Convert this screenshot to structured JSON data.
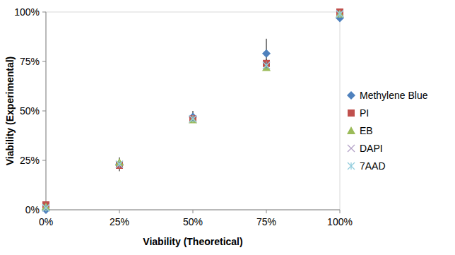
{
  "chart_data": {
    "type": "scatter",
    "x_label": "Viability (Theoretical)",
    "y_label": "Viability (Experimental)",
    "x": [
      0,
      25,
      50,
      75,
      100
    ],
    "xlim": [
      0,
      100
    ],
    "ylim": [
      0,
      100
    ],
    "xticks": [
      {
        "value": 0,
        "label": "0%"
      },
      {
        "value": 25,
        "label": "25%"
      },
      {
        "value": 50,
        "label": "50%"
      },
      {
        "value": 75,
        "label": "75%"
      },
      {
        "value": 100,
        "label": "100%"
      }
    ],
    "yticks": [
      {
        "value": 0,
        "label": "0%"
      },
      {
        "value": 25,
        "label": "25%"
      },
      {
        "value": 50,
        "label": "50%"
      },
      {
        "value": 75,
        "label": "75%"
      },
      {
        "value": 100,
        "label": "100%"
      }
    ],
    "grid": false,
    "legend": "right",
    "series": [
      {
        "name": "Methylene Blue",
        "color": "#4f81bd",
        "marker": "diamond",
        "values": [
          0,
          23,
          47,
          79,
          97
        ],
        "errors": [
          0.5,
          3.5,
          3,
          7.5,
          1
        ]
      },
      {
        "name": "PI",
        "color": "#c0504d",
        "marker": "square",
        "values": [
          2.5,
          22.5,
          46,
          74,
          100
        ],
        "errors": [
          1,
          1,
          1.5,
          2,
          0.5
        ]
      },
      {
        "name": "EB",
        "color": "#9bbb59",
        "marker": "triangle",
        "values": [
          1.5,
          24,
          45.5,
          72,
          99
        ],
        "errors": [
          1,
          1,
          1.5,
          1.5,
          0.5
        ]
      },
      {
        "name": "DAPI",
        "color": "#b3a2c7",
        "marker": "x",
        "values": [
          1,
          23,
          46,
          73,
          99
        ],
        "errors": [
          1,
          1,
          1,
          1.5,
          0.5
        ]
      },
      {
        "name": "7AAD",
        "color": "#93cddd",
        "marker": "star",
        "values": [
          1,
          23,
          46,
          73,
          99
        ],
        "errors": [
          1,
          1,
          1,
          1.5,
          0.5
        ]
      }
    ]
  }
}
